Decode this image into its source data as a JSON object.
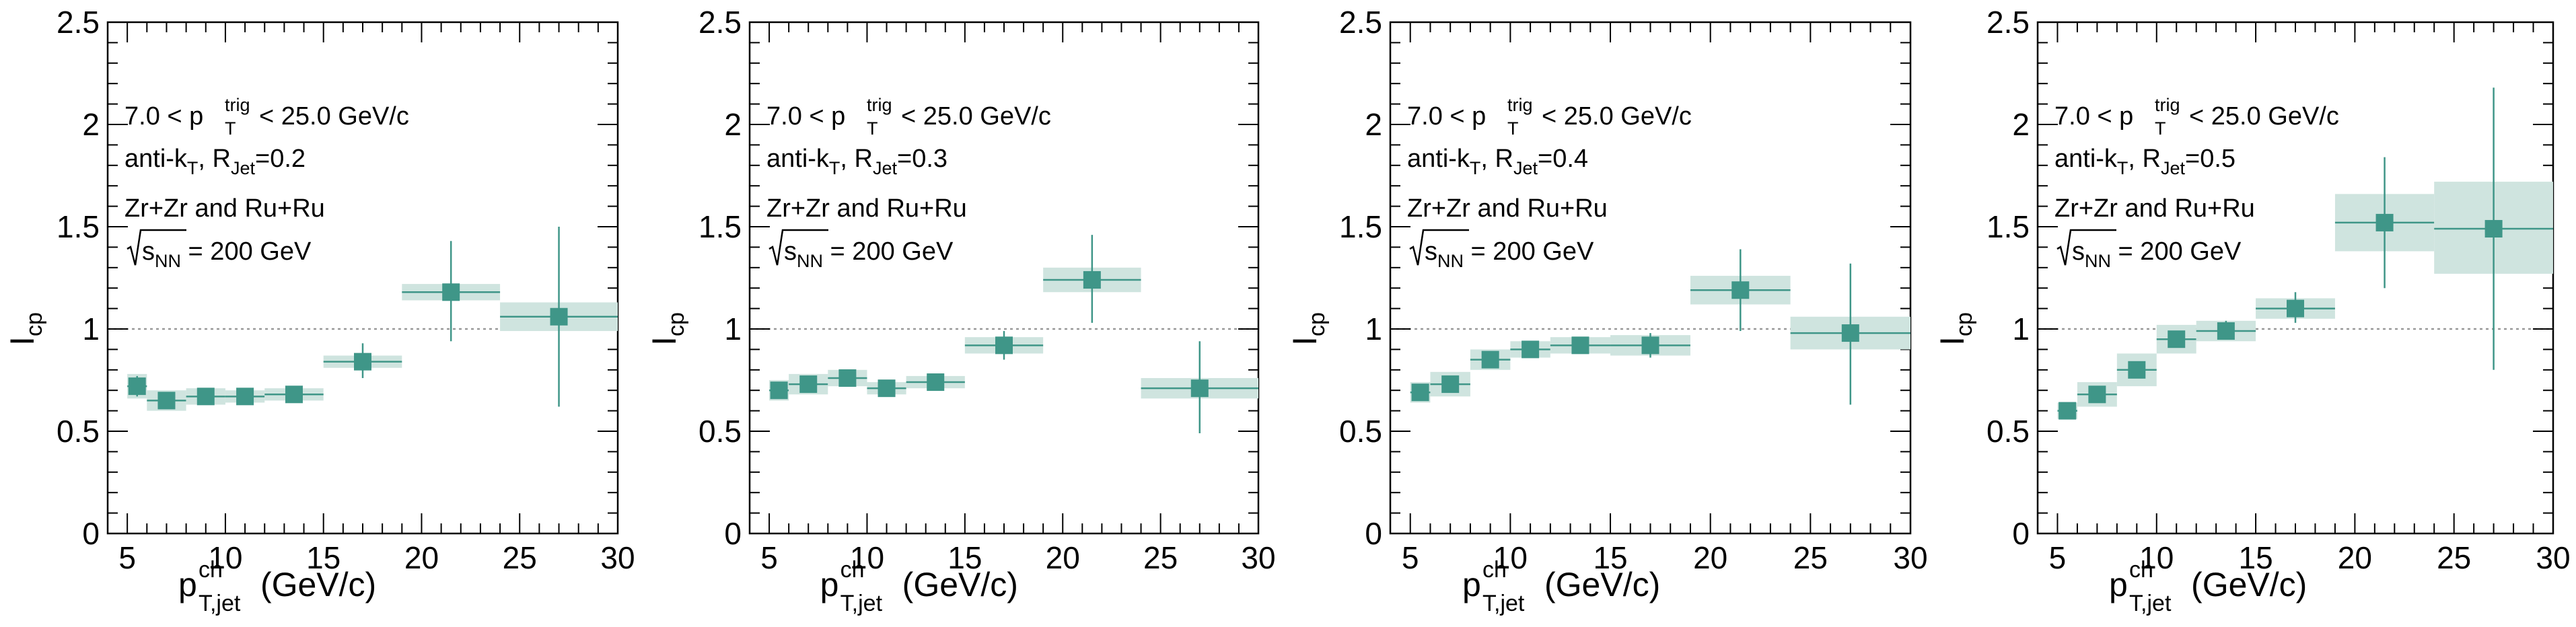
{
  "style": {
    "marker_color": "#3f9688",
    "band_color": "#cfe4df",
    "reference_line_color": "#999999"
  },
  "chart_data": [
    {
      "type": "scatter",
      "annotations": {
        "line1": {
          "pre": "7.0 < p",
          "sup": "trig",
          "sub": "T",
          "post": " < 25.0 GeV/c"
        },
        "line2": {
          "pre": "anti-k",
          "sub1": "T",
          "mid": ", R",
          "sub2": "Jet",
          "post": "=0.2"
        },
        "line3": "Zr+Zr and Ru+Ru",
        "line4": {
          "pre": "s",
          "sub": "NN",
          "post": " = 200 GeV"
        }
      },
      "ylabel": {
        "main": "I",
        "sub": "cp"
      },
      "xlabel": {
        "main": "p",
        "sup": "ch",
        "sub": "T,jet",
        "post": " (GeV/c)"
      },
      "xlim": [
        4,
        30
      ],
      "ylim": [
        0,
        2.5
      ],
      "xticks": [
        5,
        10,
        15,
        20,
        25,
        30
      ],
      "yticks": [
        "0",
        "0.5",
        "1",
        "1.5",
        "2",
        "2.5"
      ],
      "yticks_values": [
        0,
        0.5,
        1,
        1.5,
        2,
        2.5
      ],
      "reference_line": 1,
      "points": [
        {
          "x": 5.5,
          "y": 0.72,
          "x_lo": 5.0,
          "x_hi": 6.0,
          "stat_lo": 0.67,
          "stat_hi": 0.77,
          "sys_lo": 0.66,
          "sys_hi": 0.78
        },
        {
          "x": 7.0,
          "y": 0.65,
          "x_lo": 6.0,
          "x_hi": 8.0,
          "stat_lo": 0.61,
          "stat_hi": 0.69,
          "sys_lo": 0.6,
          "sys_hi": 0.7
        },
        {
          "x": 9.0,
          "y": 0.67,
          "x_lo": 8.0,
          "x_hi": 10.0,
          "stat_lo": 0.63,
          "stat_hi": 0.71,
          "sys_lo": 0.63,
          "sys_hi": 0.71
        },
        {
          "x": 11.0,
          "y": 0.67,
          "x_lo": 10.0,
          "x_hi": 12.0,
          "stat_lo": 0.63,
          "stat_hi": 0.71,
          "sys_lo": 0.64,
          "sys_hi": 0.7
        },
        {
          "x": 13.5,
          "y": 0.68,
          "x_lo": 12.0,
          "x_hi": 15.0,
          "stat_lo": 0.64,
          "stat_hi": 0.72,
          "sys_lo": 0.65,
          "sys_hi": 0.71
        },
        {
          "x": 17.0,
          "y": 0.84,
          "x_lo": 15.0,
          "x_hi": 19.0,
          "stat_lo": 0.76,
          "stat_hi": 0.93,
          "sys_lo": 0.81,
          "sys_hi": 0.87
        },
        {
          "x": 21.5,
          "y": 1.18,
          "x_lo": 19.0,
          "x_hi": 24.0,
          "stat_lo": 0.94,
          "stat_hi": 1.43,
          "sys_lo": 1.14,
          "sys_hi": 1.22
        },
        {
          "x": 27.0,
          "y": 1.06,
          "x_lo": 24.0,
          "x_hi": 30.0,
          "stat_lo": 0.62,
          "stat_hi": 1.5,
          "sys_lo": 0.99,
          "sys_hi": 1.13
        }
      ]
    },
    {
      "type": "scatter",
      "annotations": {
        "line1": {
          "pre": "7.0 < p",
          "sup": "trig",
          "sub": "T",
          "post": " < 25.0 GeV/c"
        },
        "line2": {
          "pre": "anti-k",
          "sub1": "T",
          "mid": ", R",
          "sub2": "Jet",
          "post": "=0.3"
        },
        "line3": "Zr+Zr and Ru+Ru",
        "line4": {
          "pre": "s",
          "sub": "NN",
          "post": " = 200 GeV"
        }
      },
      "ylabel": {
        "main": "I",
        "sub": "cp"
      },
      "xlabel": {
        "main": "p",
        "sup": "ch",
        "sub": "T,jet",
        "post": " (GeV/c)"
      },
      "xlim": [
        4,
        30
      ],
      "ylim": [
        0,
        2.5
      ],
      "xticks": [
        5,
        10,
        15,
        20,
        25,
        30
      ],
      "yticks": [
        "0",
        "0.5",
        "1",
        "1.5",
        "2",
        "2.5"
      ],
      "yticks_values": [
        0,
        0.5,
        1,
        1.5,
        2,
        2.5
      ],
      "reference_line": 1,
      "points": [
        {
          "x": 5.5,
          "y": 0.7,
          "x_lo": 5.0,
          "x_hi": 6.0,
          "stat_lo": 0.66,
          "stat_hi": 0.74,
          "sys_lo": 0.65,
          "sys_hi": 0.75
        },
        {
          "x": 7.0,
          "y": 0.73,
          "x_lo": 6.0,
          "x_hi": 8.0,
          "stat_lo": 0.69,
          "stat_hi": 0.77,
          "sys_lo": 0.68,
          "sys_hi": 0.78
        },
        {
          "x": 9.0,
          "y": 0.76,
          "x_lo": 8.0,
          "x_hi": 10.0,
          "stat_lo": 0.72,
          "stat_hi": 0.8,
          "sys_lo": 0.72,
          "sys_hi": 0.8
        },
        {
          "x": 11.0,
          "y": 0.71,
          "x_lo": 10.0,
          "x_hi": 12.0,
          "stat_lo": 0.67,
          "stat_hi": 0.75,
          "sys_lo": 0.68,
          "sys_hi": 0.74
        },
        {
          "x": 13.5,
          "y": 0.74,
          "x_lo": 12.0,
          "x_hi": 15.0,
          "stat_lo": 0.7,
          "stat_hi": 0.78,
          "sys_lo": 0.71,
          "sys_hi": 0.77
        },
        {
          "x": 17.0,
          "y": 0.92,
          "x_lo": 15.0,
          "x_hi": 19.0,
          "stat_lo": 0.85,
          "stat_hi": 0.99,
          "sys_lo": 0.88,
          "sys_hi": 0.96
        },
        {
          "x": 21.5,
          "y": 1.24,
          "x_lo": 19.0,
          "x_hi": 24.0,
          "stat_lo": 1.03,
          "stat_hi": 1.46,
          "sys_lo": 1.18,
          "sys_hi": 1.3
        },
        {
          "x": 27.0,
          "y": 0.71,
          "x_lo": 24.0,
          "x_hi": 30.0,
          "stat_lo": 0.49,
          "stat_hi": 0.94,
          "sys_lo": 0.66,
          "sys_hi": 0.76
        }
      ]
    },
    {
      "type": "scatter",
      "annotations": {
        "line1": {
          "pre": "7.0 < p",
          "sup": "trig",
          "sub": "T",
          "post": " < 25.0 GeV/c"
        },
        "line2": {
          "pre": "anti-k",
          "sub1": "T",
          "mid": ", R",
          "sub2": "Jet",
          "post": "=0.4"
        },
        "line3": "Zr+Zr and Ru+Ru",
        "line4": {
          "pre": "s",
          "sub": "NN",
          "post": " = 200 GeV"
        }
      },
      "ylabel": {
        "main": "I",
        "sub": "cp"
      },
      "xlabel": {
        "main": "p",
        "sup": "ch",
        "sub": "T,jet",
        "post": " (GeV/c)"
      },
      "xlim": [
        4,
        30
      ],
      "ylim": [
        0,
        2.5
      ],
      "xticks": [
        5,
        10,
        15,
        20,
        25,
        30
      ],
      "yticks": [
        "0",
        "0.5",
        "1",
        "1.5",
        "2",
        "2.5"
      ],
      "yticks_values": [
        0,
        0.5,
        1,
        1.5,
        2,
        2.5
      ],
      "reference_line": 1,
      "points": [
        {
          "x": 5.5,
          "y": 0.69,
          "x_lo": 5.0,
          "x_hi": 6.0,
          "stat_lo": 0.65,
          "stat_hi": 0.73,
          "sys_lo": 0.64,
          "sys_hi": 0.74
        },
        {
          "x": 7.0,
          "y": 0.73,
          "x_lo": 6.0,
          "x_hi": 8.0,
          "stat_lo": 0.69,
          "stat_hi": 0.77,
          "sys_lo": 0.67,
          "sys_hi": 0.79
        },
        {
          "x": 9.0,
          "y": 0.85,
          "x_lo": 8.0,
          "x_hi": 10.0,
          "stat_lo": 0.81,
          "stat_hi": 0.89,
          "sys_lo": 0.8,
          "sys_hi": 0.9
        },
        {
          "x": 11.0,
          "y": 0.9,
          "x_lo": 10.0,
          "x_hi": 12.0,
          "stat_lo": 0.86,
          "stat_hi": 0.94,
          "sys_lo": 0.86,
          "sys_hi": 0.94
        },
        {
          "x": 13.5,
          "y": 0.92,
          "x_lo": 12.0,
          "x_hi": 15.0,
          "stat_lo": 0.88,
          "stat_hi": 0.96,
          "sys_lo": 0.88,
          "sys_hi": 0.96
        },
        {
          "x": 17.0,
          "y": 0.92,
          "x_lo": 15.0,
          "x_hi": 19.0,
          "stat_lo": 0.86,
          "stat_hi": 0.98,
          "sys_lo": 0.87,
          "sys_hi": 0.97
        },
        {
          "x": 21.5,
          "y": 1.19,
          "x_lo": 19.0,
          "x_hi": 24.0,
          "stat_lo": 0.99,
          "stat_hi": 1.39,
          "sys_lo": 1.12,
          "sys_hi": 1.26
        },
        {
          "x": 27.0,
          "y": 0.98,
          "x_lo": 24.0,
          "x_hi": 30.0,
          "stat_lo": 0.63,
          "stat_hi": 1.32,
          "sys_lo": 0.9,
          "sys_hi": 1.06
        }
      ]
    },
    {
      "type": "scatter",
      "annotations": {
        "line1": {
          "pre": "7.0 < p",
          "sup": "trig",
          "sub": "T",
          "post": " < 25.0 GeV/c"
        },
        "line2": {
          "pre": "anti-k",
          "sub1": "T",
          "mid": ", R",
          "sub2": "Jet",
          "post": "=0.5"
        },
        "line3": "Zr+Zr and Ru+Ru",
        "line4": {
          "pre": "s",
          "sub": "NN",
          "post": " = 200 GeV"
        }
      },
      "ylabel": {
        "main": "I",
        "sub": "cp"
      },
      "xlabel": {
        "main": "p",
        "sup": "ch",
        "sub": "T,jet",
        "post": " (GeV/c)"
      },
      "xlim": [
        4,
        30
      ],
      "ylim": [
        0,
        2.5
      ],
      "xticks": [
        5,
        10,
        15,
        20,
        25,
        30
      ],
      "yticks": [
        "0",
        "0.5",
        "1",
        "1.5",
        "2",
        "2.5"
      ],
      "yticks_values": [
        0,
        0.5,
        1,
        1.5,
        2,
        2.5
      ],
      "reference_line": 1,
      "points": [
        {
          "x": 5.5,
          "y": 0.6,
          "x_lo": 5.0,
          "x_hi": 6.0,
          "stat_lo": 0.57,
          "stat_hi": 0.63,
          "sys_lo": 0.56,
          "sys_hi": 0.64
        },
        {
          "x": 7.0,
          "y": 0.68,
          "x_lo": 6.0,
          "x_hi": 8.0,
          "stat_lo": 0.64,
          "stat_hi": 0.72,
          "sys_lo": 0.62,
          "sys_hi": 0.74
        },
        {
          "x": 9.0,
          "y": 0.8,
          "x_lo": 8.0,
          "x_hi": 10.0,
          "stat_lo": 0.76,
          "stat_hi": 0.84,
          "sys_lo": 0.72,
          "sys_hi": 0.88
        },
        {
          "x": 11.0,
          "y": 0.95,
          "x_lo": 10.0,
          "x_hi": 12.0,
          "stat_lo": 0.91,
          "stat_hi": 0.99,
          "sys_lo": 0.88,
          "sys_hi": 1.02
        },
        {
          "x": 13.5,
          "y": 0.99,
          "x_lo": 12.0,
          "x_hi": 15.0,
          "stat_lo": 0.95,
          "stat_hi": 1.04,
          "sys_lo": 0.94,
          "sys_hi": 1.04
        },
        {
          "x": 17.0,
          "y": 1.1,
          "x_lo": 15.0,
          "x_hi": 19.0,
          "stat_lo": 1.03,
          "stat_hi": 1.18,
          "sys_lo": 1.05,
          "sys_hi": 1.15
        },
        {
          "x": 21.5,
          "y": 1.52,
          "x_lo": 19.0,
          "x_hi": 24.0,
          "stat_lo": 1.2,
          "stat_hi": 1.84,
          "sys_lo": 1.38,
          "sys_hi": 1.66
        },
        {
          "x": 27.0,
          "y": 1.49,
          "x_lo": 24.0,
          "x_hi": 30.0,
          "stat_lo": 0.8,
          "stat_hi": 2.18,
          "sys_lo": 1.27,
          "sys_hi": 1.72
        }
      ]
    }
  ]
}
